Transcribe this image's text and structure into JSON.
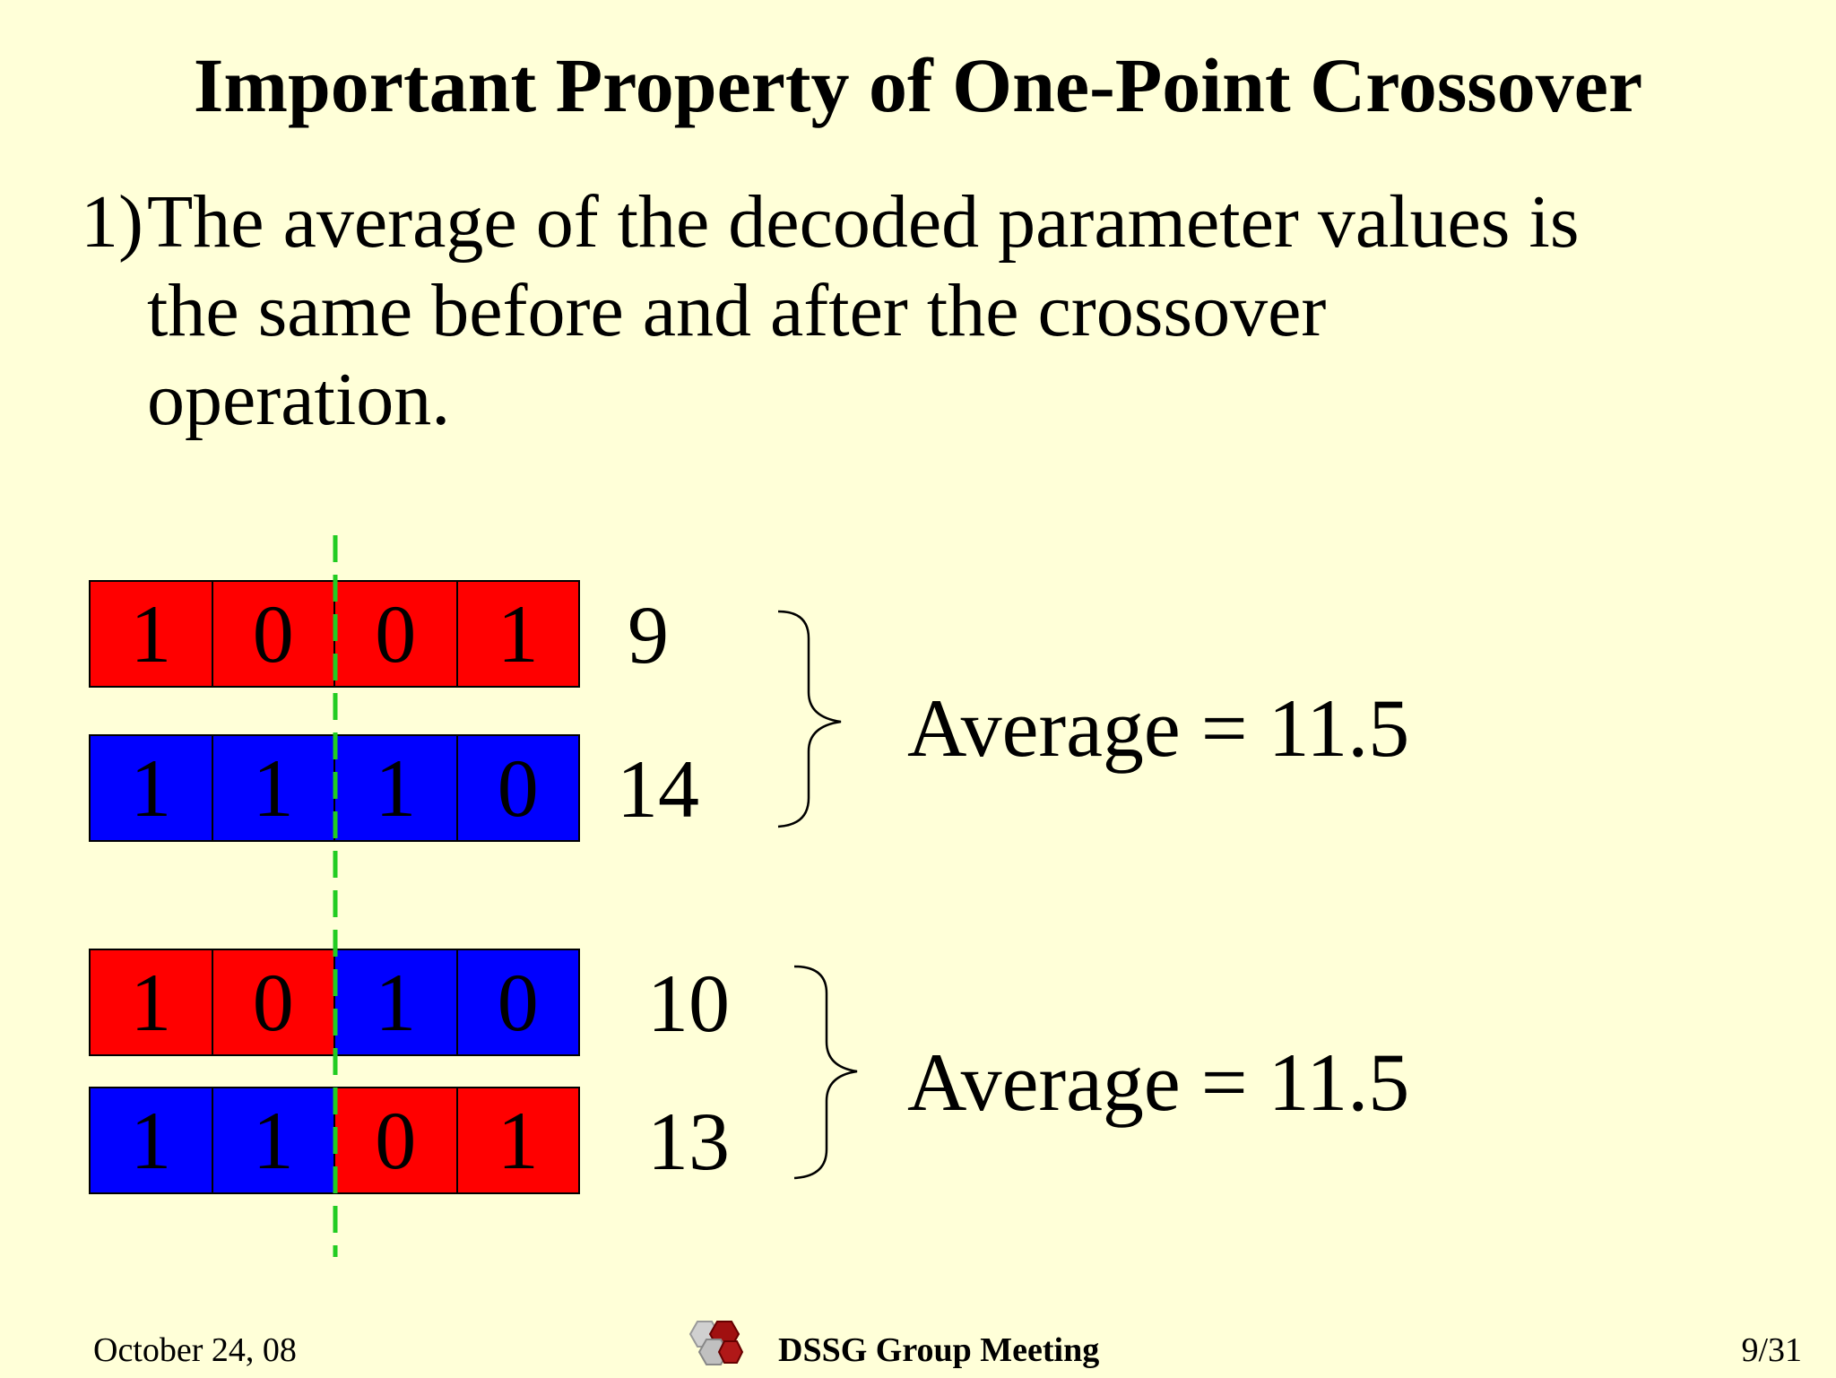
{
  "slide": {
    "title": "Important Property of One-Point Crossover",
    "point": {
      "number": "1)",
      "lines": [
        "The average of the decoded parameter values is",
        "the same before and after the crossover",
        "operation."
      ]
    }
  },
  "diagram": {
    "before": {
      "rows": [
        {
          "bits": [
            "1",
            "0",
            "0",
            "1"
          ],
          "colors": [
            "red",
            "red",
            "red",
            "red"
          ],
          "value": "9"
        },
        {
          "bits": [
            "1",
            "1",
            "1",
            "0"
          ],
          "colors": [
            "blue",
            "blue",
            "blue",
            "blue"
          ],
          "value": "14"
        }
      ],
      "average": "Average = 11.5"
    },
    "after": {
      "rows": [
        {
          "bits": [
            "1",
            "0",
            "1",
            "0"
          ],
          "colors": [
            "red",
            "red",
            "blue",
            "blue"
          ],
          "value": "10"
        },
        {
          "bits": [
            "1",
            "1",
            "0",
            "1"
          ],
          "colors": [
            "blue",
            "blue",
            "red",
            "red"
          ],
          "value": "13"
        }
      ],
      "average": "Average = 11.5"
    },
    "colors": {
      "red": "#ff0000",
      "blue": "#0000ff",
      "crossover_line": "#22cc22"
    }
  },
  "footer": {
    "date": "October 24, 08",
    "meeting": "DSSG Group Meeting",
    "page": "9/31",
    "logo_icon": "hexagon-logo-icon"
  }
}
